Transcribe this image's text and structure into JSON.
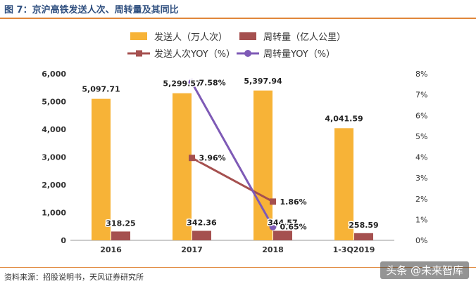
{
  "figure_title": "图 7：京沪高铁发送人次、周转量及其同比",
  "source_note": "资料来源：招股说明书，天风证券研究所",
  "watermark": "头条 @未来智库",
  "colors": {
    "passengers": "#F7B337",
    "turnover": "#A5504F",
    "passengers_yoy": "#A5504F",
    "turnover_yoy": "#7E5AB6",
    "title": "#2F4F7F",
    "accent_rule": "#E0873A"
  },
  "chart_data": {
    "type": "bar",
    "categories": [
      "2016",
      "2017",
      "2018",
      "1-3Q2019"
    ],
    "series": [
      {
        "name": "发送人（万人次）",
        "kind": "bar",
        "axis": "left",
        "values": [
          5097.71,
          5299.57,
          5397.94,
          4041.59
        ],
        "labels": [
          "5,097.71",
          "5,299.57",
          "5,397.94",
          "4,041.59"
        ]
      },
      {
        "name": "周转量（亿人公里）",
        "kind": "bar",
        "axis": "left",
        "values": [
          318.25,
          342.36,
          344.57,
          258.59
        ],
        "labels": [
          "318.25",
          "342.36",
          "344.57",
          "258.59"
        ]
      },
      {
        "name": "发送人次YOY（%）",
        "kind": "line",
        "axis": "right",
        "marker": "square",
        "values": [
          null,
          3.96,
          1.86,
          null
        ],
        "labels": [
          "",
          "3.96%",
          "1.86%",
          ""
        ]
      },
      {
        "name": "周转量YOY（%）",
        "kind": "line",
        "axis": "right",
        "marker": "circle",
        "values": [
          null,
          7.58,
          0.65,
          null
        ],
        "labels": [
          "",
          "7.58%",
          "0.65%",
          ""
        ]
      }
    ],
    "y_left": {
      "min": 0,
      "max": 6000,
      "ticks": [
        0,
        1000,
        2000,
        3000,
        4000,
        5000,
        6000
      ],
      "tick_labels": [
        "0",
        "1,000",
        "2,000",
        "3,000",
        "4,000",
        "5,000",
        "6,000"
      ]
    },
    "y_right": {
      "min": 0,
      "max": 8,
      "ticks": [
        0,
        1,
        2,
        3,
        4,
        5,
        6,
        7,
        8
      ],
      "tick_labels": [
        "0%",
        "1%",
        "2%",
        "3%",
        "4%",
        "5%",
        "6%",
        "7%",
        "8%"
      ]
    },
    "grid": false,
    "legend_position": "top"
  }
}
